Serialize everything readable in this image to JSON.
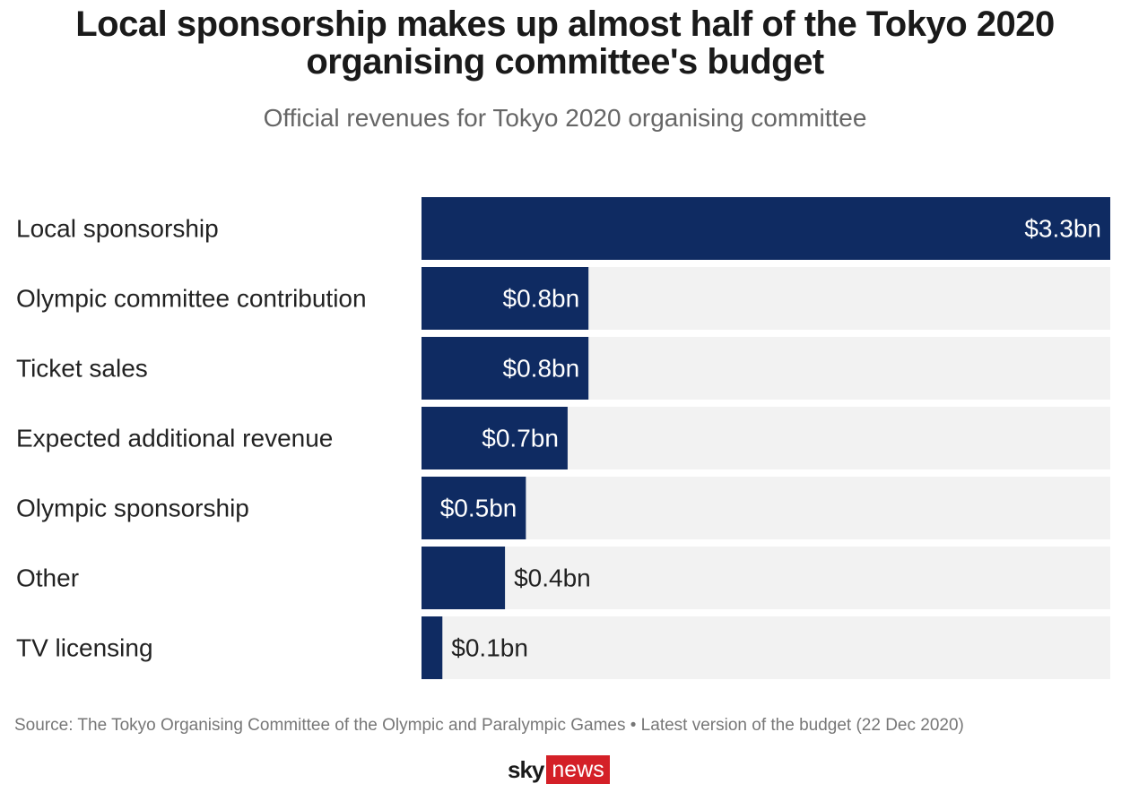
{
  "title": "Local sponsorship makes up almost half of the Tokyo 2020 organising committee's budget",
  "subtitle": "Official revenues for Tokyo 2020 organising committee",
  "source": "Source: The Tokyo Organising Committee of the Olympic and Paralympic Games • Latest version of the budget (22 Dec 2020)",
  "logo": {
    "sky": "sky",
    "news": "news"
  },
  "colors": {
    "bar": "#0f2b62",
    "track": "#f2f2f2",
    "label_inside": "#ffffff",
    "label_outside": "#222222"
  },
  "chart_data": {
    "type": "bar",
    "orientation": "horizontal",
    "categories": [
      "Local sponsorship",
      "Olympic committee contribution",
      "Ticket sales",
      "Expected additional revenue",
      "Olympic sponsorship",
      "Other",
      "TV licensing"
    ],
    "values": [
      3.3,
      0.8,
      0.8,
      0.7,
      0.5,
      0.4,
      0.1
    ],
    "labels": [
      "$3.3bn",
      "$0.8bn",
      "$0.8bn",
      "$0.7bn",
      "$0.5bn",
      "$0.4bn",
      "$0.1bn"
    ],
    "unit": "$bn",
    "xlim": [
      0,
      3.3
    ],
    "grid": false,
    "legend": "none"
  }
}
